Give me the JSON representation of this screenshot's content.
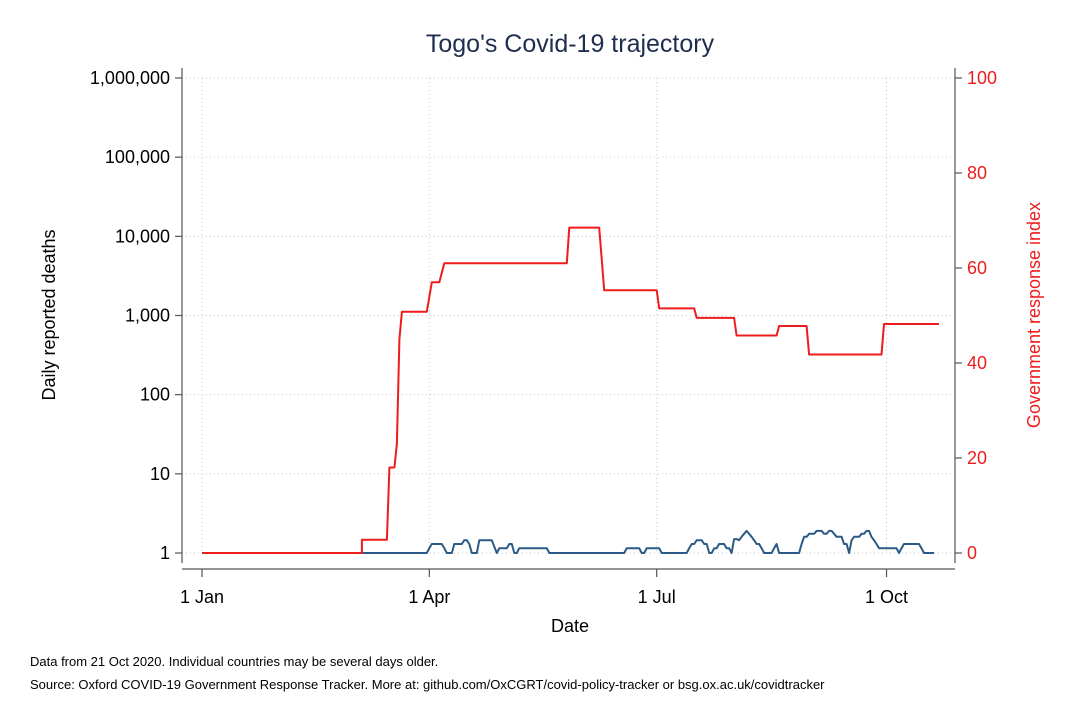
{
  "chart_data": {
    "type": "line",
    "title": "Togo's Covid-19 trajectory",
    "xlabel": "Date",
    "ylabel": "Daily reported deaths",
    "ylabel_right": "Government response index",
    "x_ticks": [
      "1 Jan",
      "1 Apr",
      "1 Jul",
      "1 Oct"
    ],
    "x_tick_days": [
      0,
      91,
      182,
      274
    ],
    "xlim_days": [
      0,
      295
    ],
    "y_left_scale": "log",
    "y_left_ticks": [
      "1",
      "10",
      "100",
      "1,000",
      "10,000",
      "100,000",
      "1,000,000"
    ],
    "y_left_tick_values": [
      1,
      10,
      100,
      1000,
      10000,
      100000,
      1000000
    ],
    "y_right_ticks": [
      "0",
      "20",
      "40",
      "60",
      "80",
      "100"
    ],
    "y_right_tick_values": [
      0,
      20,
      40,
      60,
      80,
      100
    ],
    "grid": true,
    "colors": {
      "deaths": "#2a5a86",
      "response": "#ee1c1c",
      "title": "#1f2d4e"
    },
    "series": [
      {
        "axis": "left",
        "points": [
          [
            0,
            1
          ],
          [
            81,
            1
          ],
          [
            82,
            1
          ],
          [
            85,
            1
          ],
          [
            86,
            1
          ],
          [
            87,
            1
          ],
          [
            88,
            1
          ],
          [
            89,
            1
          ],
          [
            90,
            1
          ],
          [
            91,
            1
          ],
          [
            92,
            1
          ],
          [
            93,
            1
          ],
          [
            94,
            1
          ],
          [
            95,
            1
          ],
          [
            96,
            1
          ],
          [
            97,
            1
          ],
          [
            98,
            1
          ],
          [
            99,
            1
          ],
          [
            100,
            1
          ],
          [
            101,
            1
          ],
          [
            102,
            1
          ],
          [
            103,
            1
          ],
          [
            104,
            1
          ],
          [
            105,
            1
          ],
          [
            106,
            1
          ],
          [
            107,
            1
          ],
          [
            108,
            1
          ],
          [
            109,
            1
          ],
          [
            110,
            1
          ],
          [
            111,
            1
          ],
          [
            112,
            1
          ],
          [
            113,
            1
          ],
          [
            114,
            1
          ],
          [
            115,
            1
          ],
          [
            116,
            1
          ],
          [
            117,
            1
          ],
          [
            118,
            1
          ],
          [
            119,
            1
          ],
          [
            120,
            1
          ],
          [
            121,
            1
          ],
          [
            122,
            1
          ],
          [
            123,
            1
          ],
          [
            124,
            1
          ],
          [
            125,
            1
          ],
          [
            126,
            1
          ],
          [
            127,
            1
          ],
          [
            128,
            1
          ],
          [
            129,
            1
          ],
          [
            130,
            1
          ],
          [
            131,
            1
          ],
          [
            132,
            1
          ],
          [
            133,
            1
          ],
          [
            134,
            1
          ],
          [
            135,
            1
          ],
          [
            136,
            1
          ],
          [
            137,
            1
          ],
          [
            138,
            1
          ],
          [
            139,
            1
          ],
          [
            140,
            1
          ],
          [
            141,
            1
          ],
          [
            142,
            1
          ],
          [
            143,
            1
          ],
          [
            144,
            1
          ],
          [
            145,
            1
          ],
          [
            146,
            1
          ],
          [
            147,
            1
          ],
          [
            148,
            1
          ],
          [
            149,
            1
          ],
          [
            150,
            1
          ],
          [
            151,
            1
          ],
          [
            152,
            1
          ],
          [
            153,
            1
          ],
          [
            154,
            1
          ],
          [
            155,
            1
          ],
          [
            156,
            1
          ],
          [
            157,
            1
          ],
          [
            158,
            1
          ],
          [
            159,
            1
          ],
          [
            160,
            1
          ],
          [
            161,
            1
          ],
          [
            162,
            1
          ],
          [
            163,
            1
          ],
          [
            164,
            1
          ],
          [
            165,
            1
          ],
          [
            166,
            1
          ],
          [
            167,
            1
          ],
          [
            168,
            1
          ],
          [
            169,
            1
          ],
          [
            170,
            1
          ],
          [
            171,
            1
          ],
          [
            172,
            1
          ],
          [
            173,
            1
          ],
          [
            174,
            1
          ],
          [
            175,
            1
          ],
          [
            176,
            1
          ],
          [
            177,
            1
          ],
          [
            178,
            1
          ],
          [
            179,
            1
          ],
          [
            180,
            1
          ],
          [
            181,
            1
          ],
          [
            182,
            1
          ],
          [
            183,
            1
          ],
          [
            184,
            1
          ],
          [
            185,
            1
          ],
          [
            186,
            1
          ],
          [
            187,
            1
          ],
          [
            188,
            1
          ],
          [
            189,
            1
          ],
          [
            190,
            1
          ],
          [
            191,
            1
          ],
          [
            192,
            1
          ],
          [
            193,
            1
          ],
          [
            194,
            1
          ],
          [
            195,
            1
          ],
          [
            196,
            1
          ],
          [
            197,
            1
          ],
          [
            198,
            1
          ],
          [
            199,
            1
          ],
          [
            200,
            1
          ],
          [
            201,
            1
          ],
          [
            202,
            1
          ],
          [
            203,
            1
          ],
          [
            204,
            1
          ],
          [
            205,
            1
          ],
          [
            206,
            1
          ],
          [
            207,
            1
          ],
          [
            208,
            1
          ],
          [
            209,
            1
          ],
          [
            210,
            1
          ],
          [
            211,
            1
          ],
          [
            212,
            1
          ],
          [
            213,
            1
          ],
          [
            214,
            1
          ],
          [
            215,
            1
          ],
          [
            216,
            1
          ],
          [
            217,
            1
          ],
          [
            218,
            1
          ],
          [
            219,
            1
          ],
          [
            220,
            1
          ],
          [
            221,
            1
          ],
          [
            222,
            1
          ],
          [
            223,
            1
          ],
          [
            224,
            1
          ],
          [
            225,
            1
          ],
          [
            226,
            1
          ],
          [
            227,
            1
          ],
          [
            228,
            1
          ],
          [
            229,
            1
          ],
          [
            230,
            1
          ],
          [
            231,
            1
          ],
          [
            232,
            1
          ],
          [
            233,
            1
          ],
          [
            234,
            1
          ],
          [
            235,
            1
          ],
          [
            236,
            1
          ],
          [
            237,
            1
          ],
          [
            238,
            1
          ],
          [
            239,
            1
          ],
          [
            240,
            1
          ],
          [
            241,
            1
          ],
          [
            242,
            1
          ],
          [
            243,
            1
          ],
          [
            244,
            1
          ],
          [
            245,
            1
          ],
          [
            246,
            1
          ],
          [
            247,
            1
          ],
          [
            248,
            1
          ],
          [
            249,
            1
          ],
          [
            250,
            1
          ],
          [
            251,
            1
          ],
          [
            252,
            1
          ],
          [
            253,
            1
          ],
          [
            254,
            1
          ],
          [
            255,
            1
          ],
          [
            256,
            1
          ],
          [
            257,
            1
          ],
          [
            258,
            1
          ],
          [
            259,
            1
          ],
          [
            260,
            1
          ],
          [
            261,
            1
          ],
          [
            262,
            1
          ],
          [
            263,
            1
          ],
          [
            264,
            1
          ],
          [
            265,
            1
          ],
          [
            266,
            1
          ],
          [
            267,
            1
          ],
          [
            268,
            1
          ],
          [
            269,
            1
          ],
          [
            270,
            1
          ],
          [
            271,
            1
          ],
          [
            272,
            1
          ],
          [
            273,
            1
          ],
          [
            274,
            1
          ],
          [
            275,
            1
          ],
          [
            276,
            1
          ],
          [
            277,
            1
          ],
          [
            278,
            1
          ],
          [
            279,
            1
          ],
          [
            280,
            1
          ],
          [
            281,
            1
          ],
          [
            282,
            1
          ],
          [
            283,
            1
          ],
          [
            284,
            1
          ],
          [
            285,
            1
          ],
          [
            286,
            1
          ],
          [
            287,
            1
          ],
          [
            288,
            1
          ],
          [
            289,
            1
          ],
          [
            290,
            1
          ],
          [
            291,
            1
          ],
          [
            292,
            1
          ],
          [
            293,
            1
          ]
        ]
      },
      {
        "axis": "right",
        "points": [
          [
            0,
            0
          ],
          [
            64,
            0
          ],
          [
            64,
            2.8
          ],
          [
            74,
            2.8
          ],
          [
            75,
            18
          ],
          [
            77,
            18
          ],
          [
            78,
            23
          ],
          [
            79,
            45
          ],
          [
            80,
            50.8
          ],
          [
            90,
            50.8
          ],
          [
            92,
            57
          ],
          [
            95,
            57
          ],
          [
            97,
            61
          ],
          [
            146,
            61
          ],
          [
            147,
            68.5
          ],
          [
            159,
            68.5
          ],
          [
            161,
            55.3
          ],
          [
            182,
            55.3
          ],
          [
            183,
            51.5
          ],
          [
            197,
            51.5
          ],
          [
            198,
            49.5
          ],
          [
            213,
            49.5
          ],
          [
            214,
            45.8
          ],
          [
            230,
            45.8
          ],
          [
            231,
            47.8
          ],
          [
            242,
            47.8
          ],
          [
            243,
            41.8
          ],
          [
            272,
            41.8
          ],
          [
            273,
            48.2
          ],
          [
            295,
            48.2
          ]
        ]
      }
    ],
    "notes": [
      "Data from 21 Oct 2020. Individual countries may be several days older.",
      "Source: Oxford COVID-19 Government Response Tracker. More at: github.com/OxCGRT/covid-policy-tracker or bsg.ox.ac.uk/covidtracker"
    ]
  }
}
